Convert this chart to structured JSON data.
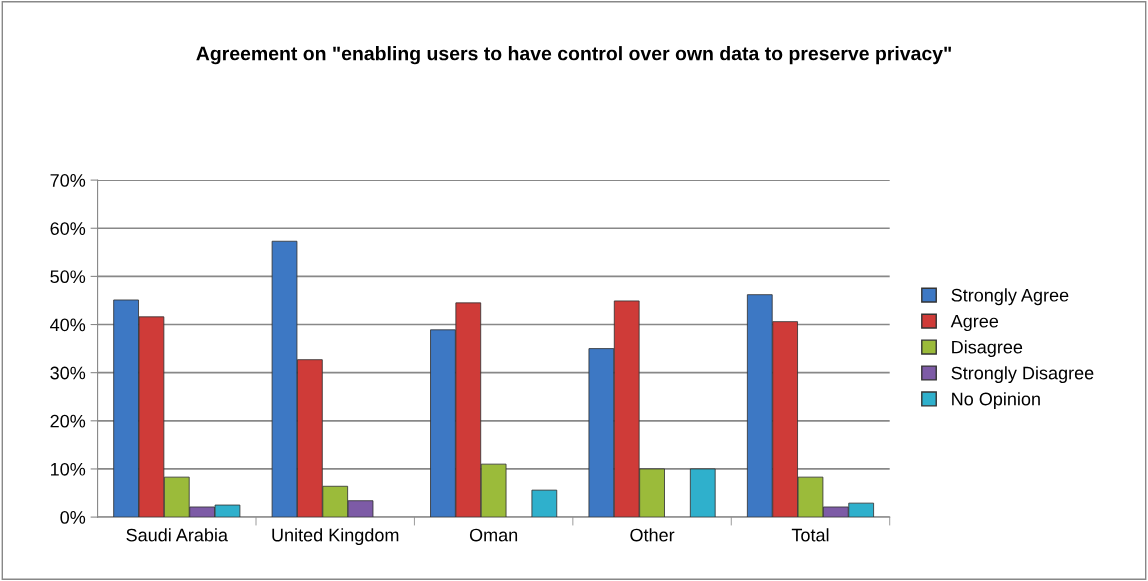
{
  "chart_data": {
    "type": "bar",
    "title": "Agreement on \"enabling users to have control over own data to preserve privacy\"",
    "categories": [
      "Saudi Arabia",
      "United Kingdom",
      "Oman",
      "Other",
      "Total"
    ],
    "series": [
      {
        "name": "Strongly Agree",
        "color": "#3d78c4",
        "values": [
          45.1,
          57.3,
          38.9,
          35.0,
          46.2
        ]
      },
      {
        "name": "Agree",
        "color": "#cf3b38",
        "values": [
          41.6,
          32.7,
          44.5,
          44.9,
          40.6
        ]
      },
      {
        "name": "Disagree",
        "color": "#9bbb3a",
        "values": [
          8.3,
          6.4,
          11.0,
          10.0,
          8.3
        ]
      },
      {
        "name": "Strongly Disagree",
        "color": "#7d5ba6",
        "values": [
          2.1,
          3.4,
          null,
          null,
          2.1
        ]
      },
      {
        "name": "No Opinion",
        "color": "#2fb0cc",
        "values": [
          2.5,
          null,
          5.6,
          10.0,
          2.9
        ]
      }
    ],
    "ylim": [
      0,
      70
    ],
    "yticks": [
      {
        "value": 0,
        "label": "0%"
      },
      {
        "value": 10,
        "label": "10%"
      },
      {
        "value": 20,
        "label": "20%"
      },
      {
        "value": 30,
        "label": "30%"
      },
      {
        "value": 40,
        "label": "40%"
      },
      {
        "value": 50,
        "label": "50%"
      },
      {
        "value": 60,
        "label": "60%"
      },
      {
        "value": 70,
        "label": "70%"
      }
    ],
    "grid": "y",
    "legend": "right"
  }
}
